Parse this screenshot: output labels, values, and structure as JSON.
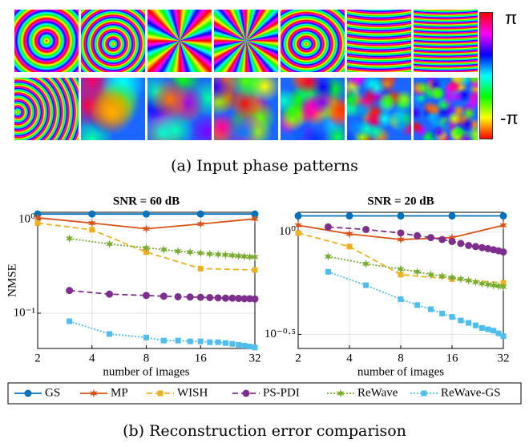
{
  "patterns": {
    "colorbar_max": "π",
    "colorbar_min": "-π",
    "caption": "(a) Input phase patterns"
  },
  "caption_b": "(b) Reconstruction error comparison",
  "chart_data": [
    {
      "type": "line",
      "title": "SNR = 60 dB",
      "x_label": "number of images",
      "y_label": "NMSE",
      "xscale": "log",
      "yscale": "log",
      "grid": true,
      "xlim": [
        2,
        32
      ],
      "xticks": [
        2,
        4,
        8,
        16,
        32
      ],
      "ylim": [
        0.042,
        1.2
      ],
      "yticks": [
        {
          "value": 0.1,
          "label": "10⁻¹"
        },
        {
          "value": 1,
          "label": "10⁰"
        }
      ],
      "series": [
        {
          "name": "GS",
          "color": "#0072bd",
          "marker": "circle",
          "dash": "solid",
          "x": [
            2,
            4,
            8,
            16,
            32
          ],
          "values": [
            1.15,
            1.15,
            1.15,
            1.15,
            1.15
          ]
        },
        {
          "name": "MP",
          "color": "#d95319",
          "marker": "star",
          "dash": "solid",
          "x": [
            2,
            4,
            8,
            16,
            32
          ],
          "values": [
            1.05,
            0.92,
            0.8,
            0.9,
            1.02
          ]
        },
        {
          "name": "WISH",
          "color": "#edb120",
          "marker": "square",
          "dash": "dashed",
          "x": [
            2,
            4,
            8,
            16,
            32
          ],
          "values": [
            0.92,
            0.78,
            0.45,
            0.3,
            0.29
          ]
        },
        {
          "name": "PS-PDI",
          "color": "#7e2f8e",
          "marker": "circle",
          "dash": "dashed",
          "x": [
            3,
            5,
            8,
            10,
            12,
            14,
            16,
            18,
            20,
            22,
            24,
            26,
            28,
            30,
            32
          ],
          "values": [
            0.175,
            0.16,
            0.155,
            0.152,
            0.15,
            0.149,
            0.148,
            0.147,
            0.146,
            0.145,
            0.145,
            0.144,
            0.143,
            0.143,
            0.142
          ]
        },
        {
          "name": "ReWave",
          "color": "#77ac30",
          "marker": "star",
          "dash": "dotted",
          "x": [
            3,
            5,
            8,
            10,
            12,
            14,
            16,
            18,
            20,
            22,
            24,
            26,
            28,
            30,
            32
          ],
          "values": [
            0.63,
            0.55,
            0.5,
            0.48,
            0.46,
            0.45,
            0.44,
            0.43,
            0.425,
            0.42,
            0.415,
            0.41,
            0.405,
            0.4,
            0.4
          ]
        },
        {
          "name": "ReWave-GS",
          "color": "#4dbeee",
          "marker": "square",
          "dash": "dotted",
          "x": [
            3,
            5,
            8,
            10,
            12,
            14,
            16,
            18,
            20,
            22,
            24,
            26,
            28,
            30,
            32
          ],
          "values": [
            0.082,
            0.06,
            0.055,
            0.051,
            0.051,
            0.05,
            0.05,
            0.049,
            0.049,
            0.048,
            0.047,
            0.046,
            0.045,
            0.044,
            0.043
          ]
        }
      ]
    },
    {
      "type": "line",
      "title": "SNR = 20 dB",
      "x_label": "number of images",
      "xscale": "log",
      "yscale": "log",
      "grid": true,
      "xlim": [
        2,
        32
      ],
      "xticks": [
        2,
        4,
        8,
        16,
        32
      ],
      "ylim": [
        0.27,
        1.25
      ],
      "yticks": [
        {
          "value": 0.31623,
          "label": "10⁻⁰·⁵"
        },
        {
          "value": 1,
          "label": "10⁰"
        }
      ],
      "series": [
        {
          "color": "#0072bd",
          "marker": "circle",
          "dash": "solid",
          "x": [
            2,
            4,
            8,
            16,
            32
          ],
          "values": [
            1.2,
            1.2,
            1.2,
            1.2,
            1.2
          ]
        },
        {
          "color": "#d95319",
          "marker": "star",
          "dash": "solid",
          "x": [
            2,
            4,
            8,
            16,
            32
          ],
          "values": [
            1.08,
            0.98,
            0.92,
            0.94,
            1.08
          ]
        },
        {
          "color": "#edb120",
          "marker": "square",
          "dash": "dashed",
          "x": [
            2,
            4,
            8,
            16,
            32
          ],
          "values": [
            0.99,
            0.85,
            0.62,
            0.59,
            0.565
          ]
        },
        {
          "color": "#7e2f8e",
          "marker": "circle",
          "dash": "dashed",
          "x": [
            3,
            5,
            8,
            10,
            12,
            14,
            16,
            18,
            20,
            22,
            24,
            26,
            28,
            30,
            32
          ],
          "values": [
            1.06,
            1.03,
            0.99,
            0.96,
            0.94,
            0.92,
            0.9,
            0.88,
            0.86,
            0.85,
            0.84,
            0.83,
            0.82,
            0.81,
            0.8
          ]
        },
        {
          "color": "#77ac30",
          "marker": "star",
          "dash": "dotted",
          "x": [
            3,
            5,
            8,
            10,
            12,
            14,
            16,
            18,
            20,
            22,
            24,
            26,
            28,
            30,
            32
          ],
          "values": [
            0.76,
            0.7,
            0.66,
            0.64,
            0.62,
            0.61,
            0.6,
            0.59,
            0.58,
            0.57,
            0.56,
            0.555,
            0.55,
            0.545,
            0.54
          ]
        },
        {
          "color": "#4dbeee",
          "marker": "square",
          "dash": "dotted",
          "x": [
            3,
            5,
            8,
            10,
            12,
            14,
            16,
            18,
            20,
            22,
            24,
            26,
            28,
            30,
            32
          ],
          "values": [
            0.64,
            0.55,
            0.47,
            0.44,
            0.42,
            0.4,
            0.385,
            0.37,
            0.36,
            0.35,
            0.34,
            0.335,
            0.33,
            0.32,
            0.31
          ]
        }
      ]
    }
  ]
}
